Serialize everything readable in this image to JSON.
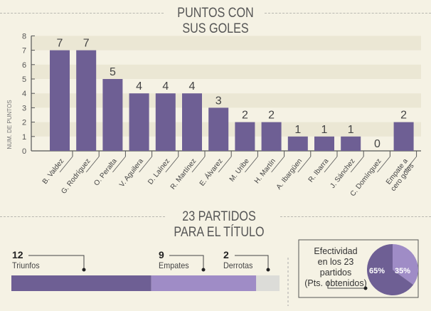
{
  "chart_data": {
    "type": "bar",
    "title": "PUNTOS CON SUS GOLES",
    "title_lines": [
      "PUNTOS CON",
      "SUS GOLES"
    ],
    "ylabel": "NUM. DE PUNTOS",
    "xlabel": "",
    "ylim": [
      0,
      8
    ],
    "yticks": [
      "0",
      "1",
      "2",
      "3",
      "4",
      "5",
      "6",
      "7",
      "8"
    ],
    "categories": [
      "B. Valdez",
      "G. Rodríguez",
      "O. Peralta",
      "V. Aguilera",
      "D. Laínez",
      "R. Martínez",
      "E. Álvarez",
      "M. Uribe",
      "H. Martín",
      "A. Ibargüen",
      "R. Ibarra",
      "J. Sánchez",
      "C. Domínguez",
      "Empate a cero goles"
    ],
    "values": [
      7,
      7,
      5,
      4,
      4,
      4,
      3,
      2,
      2,
      1,
      1,
      1,
      0,
      2
    ],
    "value_labels": [
      "7",
      "7",
      "5",
      "4",
      "4",
      "4",
      "3",
      "2",
      "2",
      "1",
      "1",
      "1",
      "0",
      "2"
    ],
    "bar_color": "#6e5f94",
    "grid": "alternating bands"
  },
  "section2": {
    "title_lines": [
      "23 PARTIDOS",
      "PARA EL TÍTULO"
    ],
    "results": [
      {
        "count": "12",
        "label": "Triunfos",
        "value": 12,
        "color": "#6e5f94"
      },
      {
        "count": "9",
        "label": "Empates",
        "value": 9,
        "color": "#9f8cc6"
      },
      {
        "count": "2",
        "label": "Derrotas",
        "value": 2,
        "color": "#dcdcd8"
      }
    ],
    "efectividad": {
      "label_lines": [
        "Efectividad",
        "en los 23",
        "partidos",
        "(Pts. obtenidos)"
      ],
      "slices": [
        {
          "label": "65%",
          "value": 65,
          "color": "#6e5f94"
        },
        {
          "label": "35%",
          "value": 35,
          "color": "#9f8cc6"
        }
      ]
    }
  }
}
